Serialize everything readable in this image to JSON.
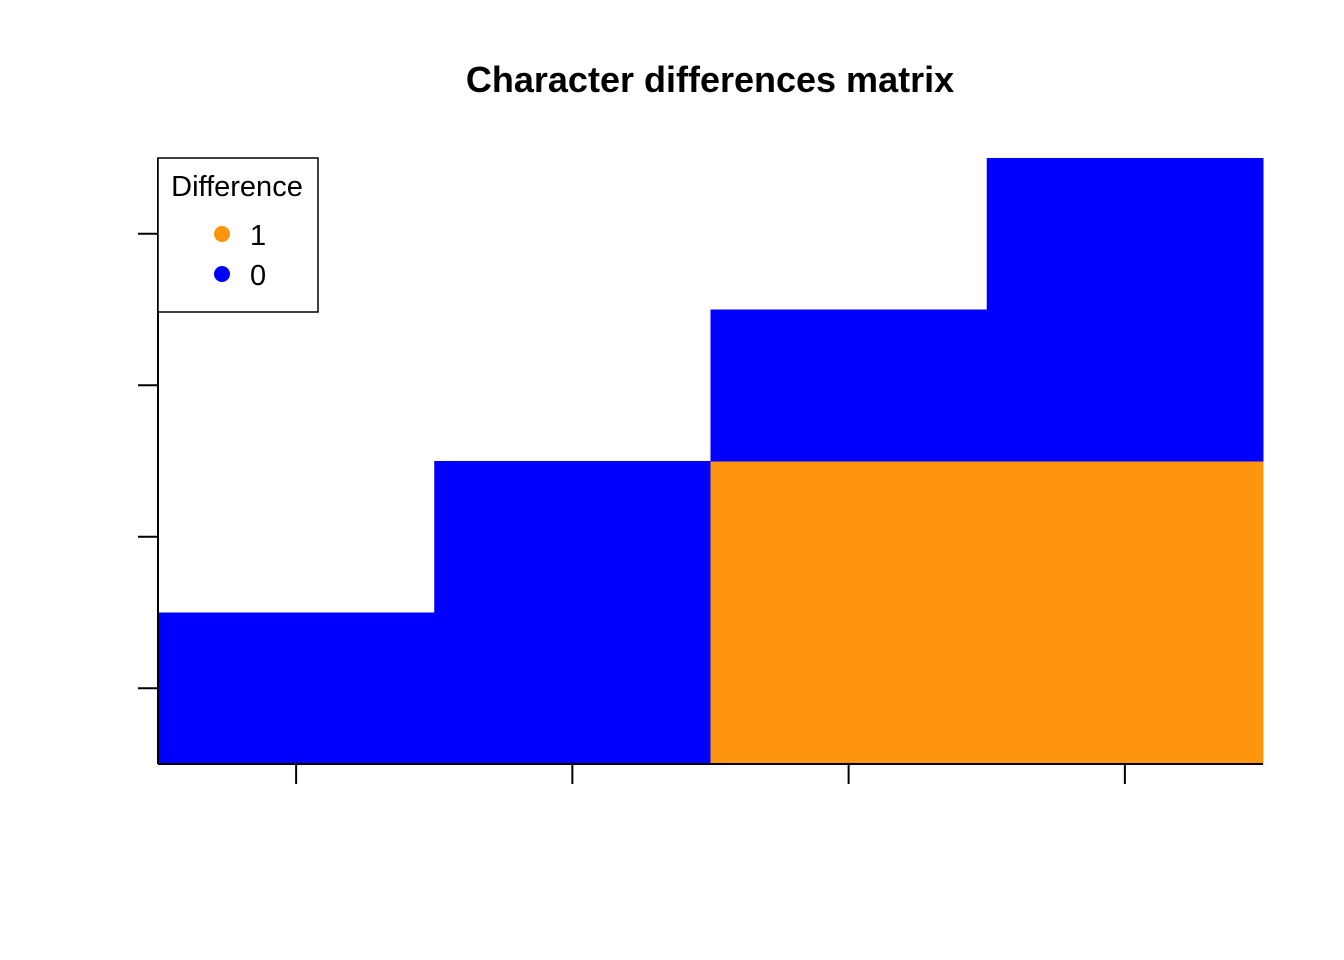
{
  "chart_data": {
    "type": "heatmap",
    "title": "Character differences matrix",
    "xlabel": "",
    "ylabel": "",
    "n_cols": 4,
    "n_rows": 4,
    "xlim": [
      0.5,
      4.5
    ],
    "ylim": [
      0.5,
      4.5
    ],
    "x_ticks": [
      1,
      2,
      3,
      4
    ],
    "y_ticks": [
      1,
      2,
      3,
      4
    ],
    "tick_labels_shown": false,
    "matrix_shape": "lower-triangular",
    "cells": [
      {
        "row": 1,
        "col": 1,
        "value": 0
      },
      {
        "row": 1,
        "col": 2,
        "value": 0
      },
      {
        "row": 1,
        "col": 3,
        "value": 1
      },
      {
        "row": 1,
        "col": 4,
        "value": 1
      },
      {
        "row": 2,
        "col": 2,
        "value": 0
      },
      {
        "row": 2,
        "col": 3,
        "value": 1
      },
      {
        "row": 2,
        "col": 4,
        "value": 1
      },
      {
        "row": 3,
        "col": 3,
        "value": 0
      },
      {
        "row": 3,
        "col": 4,
        "value": 0
      },
      {
        "row": 4,
        "col": 4,
        "value": 0
      }
    ],
    "colors": {
      "1": "#FF940E",
      "0": "#0000FF"
    },
    "legend": {
      "title": "Difference",
      "position": "top-left",
      "entries": [
        {
          "label": "1",
          "value": 1,
          "color": "#FF940E"
        },
        {
          "label": "0",
          "value": 0,
          "color": "#0000FF"
        }
      ]
    },
    "grid": false
  }
}
